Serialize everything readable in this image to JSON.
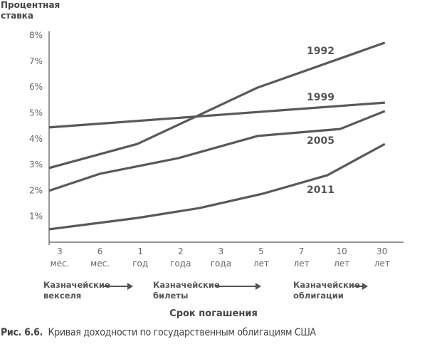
{
  "chart_data": {
    "type": "line",
    "ylabel": "Процентная ставка",
    "xlabel": "Срок погашения",
    "caption_number": "Рис. 6.6.",
    "caption_text": "Кривая доходности по государственным облигациям США",
    "ylim": [
      0,
      8
    ],
    "yticks": [
      "1%",
      "2%",
      "3%",
      "4%",
      "5%",
      "6%",
      "7%",
      "8%"
    ],
    "categories": [
      {
        "num": "3",
        "unit": "мес."
      },
      {
        "num": "6",
        "unit": "мес."
      },
      {
        "num": "1",
        "unit": "год"
      },
      {
        "num": "2",
        "unit": "года"
      },
      {
        "num": "3",
        "unit": "года"
      },
      {
        "num": "5",
        "unit": "лет"
      },
      {
        "num": "7",
        "unit": "лет"
      },
      {
        "num": "10",
        "unit": "лет"
      },
      {
        "num": "30",
        "unit": "лет"
      }
    ],
    "groups": [
      {
        "line1": "Казначейские",
        "line2": "векселя"
      },
      {
        "line1": "Казначейские",
        "line2": "билеты"
      },
      {
        "line1": "Казначейские",
        "line2": "облигации"
      }
    ],
    "series": [
      {
        "name": "1992",
        "points": [
          [
            -0.27,
            2.84
          ],
          [
            1.93,
            3.77
          ],
          [
            4.91,
            5.95
          ],
          [
            8.07,
            7.69
          ]
        ]
      },
      {
        "name": "1999",
        "points": [
          [
            -0.27,
            4.41
          ],
          [
            8.07,
            5.37
          ]
        ]
      },
      {
        "name": "2005",
        "points": [
          [
            -0.27,
            1.96
          ],
          [
            1.0,
            2.62
          ],
          [
            2.94,
            3.22
          ],
          [
            4.91,
            4.08
          ],
          [
            6.96,
            4.35
          ],
          [
            8.07,
            5.04
          ]
        ]
      },
      {
        "name": "2011",
        "points": [
          [
            -0.27,
            0.47
          ],
          [
            1.93,
            0.91
          ],
          [
            3.46,
            1.29
          ],
          [
            5.05,
            1.85
          ],
          [
            6.64,
            2.56
          ],
          [
            8.07,
            3.77
          ]
        ]
      }
    ],
    "line_color": "#595959",
    "grid": false
  }
}
